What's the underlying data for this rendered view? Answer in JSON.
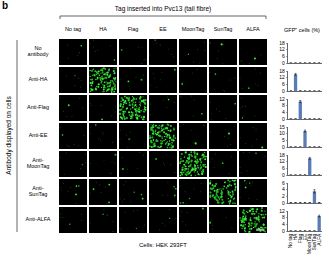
{
  "panel_label": "b",
  "column_title": "Tag inserted into Pvc13 (tail fibre)",
  "row_title": "Antibody displayed on cells",
  "footer": "Cells: HEK 293FT",
  "y_label": "GFP⁺ cells (%)",
  "chart_data": [
    {
      "type": "bar",
      "row_label": "No antibody",
      "categories": [
        "No tag",
        "HA",
        "Flag",
        "EE",
        "MoonTag",
        "SunTag",
        "ALFA"
      ],
      "values": [
        0.1,
        0.1,
        0.1,
        0.1,
        0.1,
        0.1,
        0.1
      ],
      "errors": [
        0.05,
        0.05,
        0.05,
        0.05,
        0.05,
        0.05,
        0.05
      ],
      "color": "#5a7bb5",
      "ylim": [
        0,
        18
      ],
      "yticks": [
        0,
        6,
        12,
        18
      ],
      "tick_labels": "y"
    },
    {
      "type": "bar",
      "row_label": "Anti-HA",
      "categories": [
        "No tag",
        "HA",
        "Flag",
        "EE",
        "MoonTag",
        "SunTag",
        "ALFA"
      ],
      "values": [
        0.1,
        15,
        0.2,
        0.1,
        0.1,
        0.1,
        0.1
      ],
      "errors": [
        0.05,
        0.8,
        0.05,
        0.05,
        0.05,
        0.05,
        0.05
      ],
      "color": "#5a7bb5",
      "ylim": [
        0,
        18
      ],
      "yticks": [
        0,
        6,
        12,
        18
      ],
      "tick_labels": "y"
    },
    {
      "type": "bar",
      "row_label": "Anti-Flag",
      "categories": [
        "No tag",
        "HA",
        "Flag",
        "EE",
        "MoonTag",
        "SunTag",
        "ALFA"
      ],
      "values": [
        0.1,
        0.1,
        10.5,
        0.1,
        0.1,
        0.1,
        0.1
      ],
      "errors": [
        0.05,
        0.05,
        0.6,
        0.05,
        0.05,
        0.05,
        0.05
      ],
      "color": "#5a7bb5",
      "ylim": [
        0,
        12
      ],
      "yticks": [
        0,
        4,
        8,
        12
      ],
      "tick_labels": "y"
    },
    {
      "type": "bar",
      "row_label": "Anti-EE",
      "categories": [
        "No tag",
        "HA",
        "Flag",
        "EE",
        "MoonTag",
        "SunTag",
        "ALFA"
      ],
      "values": [
        0.1,
        0.1,
        0.1,
        12,
        0.1,
        0.1,
        0.1
      ],
      "errors": [
        0.05,
        0.05,
        0.05,
        0.7,
        0.05,
        0.05,
        0.05
      ],
      "color": "#5a7bb5",
      "ylim": [
        0,
        15
      ],
      "yticks": [
        0,
        5,
        10,
        15
      ],
      "tick_labels": "y"
    },
    {
      "type": "bar",
      "row_label": "Anti-MoonTag",
      "categories": [
        "No tag",
        "HA",
        "Flag",
        "EE",
        "MoonTag",
        "SunTag",
        "ALFA"
      ],
      "values": [
        0.1,
        0.1,
        0.1,
        0.1,
        15,
        0.1,
        0.1
      ],
      "errors": [
        0.05,
        0.05,
        0.05,
        0.05,
        0.8,
        0.05,
        0.05
      ],
      "color": "#5a7bb5",
      "ylim": [
        0,
        18
      ],
      "yticks": [
        0,
        6,
        12,
        18
      ],
      "tick_labels": "y"
    },
    {
      "type": "bar",
      "row_label": "Anti-SunTag",
      "categories": [
        "No tag",
        "HA",
        "Flag",
        "EE",
        "MoonTag",
        "SunTag",
        "ALFA"
      ],
      "values": [
        0.1,
        0.1,
        0.1,
        0.1,
        0.1,
        3.5,
        0.1
      ],
      "errors": [
        0.05,
        0.05,
        0.05,
        0.05,
        0.05,
        0.5,
        0.05
      ],
      "color": "#5a7bb5",
      "ylim": [
        0,
        6
      ],
      "yticks": [
        0,
        2,
        4,
        6
      ],
      "tick_labels": "y"
    },
    {
      "type": "bar",
      "row_label": "Anti-ALFA",
      "categories": [
        "No tag",
        "HA",
        "Flag",
        "EE",
        "MoonTag",
        "SunTag",
        "ALFA"
      ],
      "values": [
        0.1,
        0.1,
        0.1,
        0.1,
        0.1,
        0.1,
        9
      ],
      "errors": [
        0.05,
        0.05,
        0.05,
        0.05,
        0.05,
        0.05,
        0.5
      ],
      "color": "#5a7bb5",
      "ylim": [
        0,
        12
      ],
      "yticks": [
        0,
        4,
        8,
        12
      ]
    }
  ]
}
